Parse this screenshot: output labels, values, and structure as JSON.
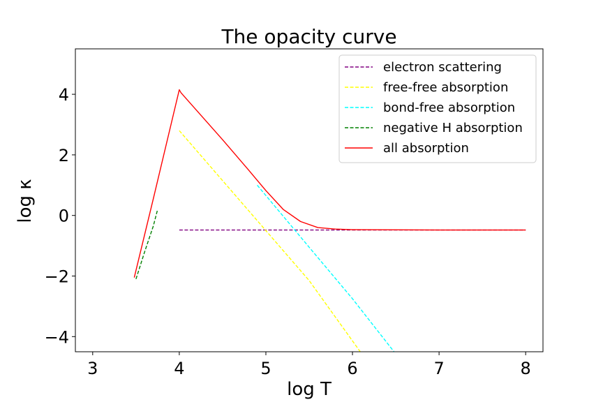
{
  "chart_data": {
    "type": "line",
    "title": "The opacity curve",
    "xlabel": "log T",
    "ylabel": "log κ",
    "xlim": [
      2.8,
      8.2
    ],
    "ylim": [
      -4.5,
      5.5
    ],
    "xticks": [
      "3",
      "4",
      "5",
      "6",
      "7",
      "8"
    ],
    "yticks": [
      "−4",
      "−2",
      "0",
      "2",
      "4"
    ],
    "grid": false,
    "legend_position": "top-right",
    "series": [
      {
        "name": "electron scattering",
        "style": "dashed",
        "color": "#800080",
        "points": [
          [
            4.0,
            -0.48
          ],
          [
            8.0,
            -0.48
          ]
        ]
      },
      {
        "name": "free-free absorption",
        "style": "dashed",
        "color": "#ffff00",
        "points": [
          [
            4.0,
            2.8
          ],
          [
            4.5,
            1.15
          ],
          [
            5.0,
            -0.5
          ],
          [
            5.5,
            -2.15
          ],
          [
            6.09,
            -4.5
          ]
        ]
      },
      {
        "name": "bond-free absorption",
        "style": "dashed",
        "color": "#00ffff",
        "points": [
          [
            4.9,
            1.0
          ],
          [
            5.5,
            -1.05
          ],
          [
            6.0,
            -2.75
          ],
          [
            6.48,
            -4.5
          ]
        ]
      },
      {
        "name": "negative H absorption",
        "style": "dashed",
        "color": "#008000",
        "points": [
          [
            3.5,
            -2.1
          ],
          [
            3.6,
            -1.2
          ],
          [
            3.7,
            -0.35
          ],
          [
            3.75,
            0.2
          ]
        ]
      },
      {
        "name": "all absorption",
        "style": "solid",
        "color": "#ff0000",
        "points": [
          [
            3.48,
            -2.05
          ],
          [
            3.7,
            0.55
          ],
          [
            4.0,
            4.15
          ],
          [
            4.02,
            4.05
          ],
          [
            4.5,
            2.5
          ],
          [
            4.8,
            1.5
          ],
          [
            5.0,
            0.82
          ],
          [
            5.2,
            0.2
          ],
          [
            5.4,
            -0.2
          ],
          [
            5.6,
            -0.4
          ],
          [
            5.8,
            -0.45
          ],
          [
            6.0,
            -0.47
          ],
          [
            7.0,
            -0.48
          ],
          [
            8.0,
            -0.48
          ]
        ]
      }
    ]
  }
}
